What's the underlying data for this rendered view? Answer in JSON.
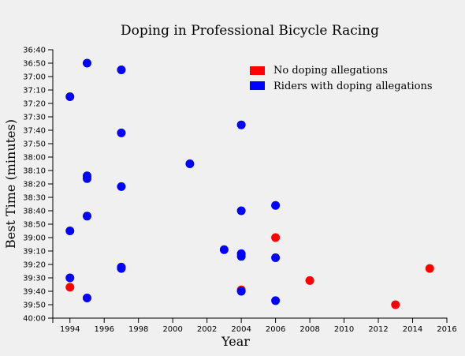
{
  "chart_data": {
    "type": "scatter",
    "title": "Doping in Professional Bicycle Racing",
    "xlabel": "Year",
    "ylabel": "Best Time (minutes)",
    "xlim": [
      1993,
      2016
    ],
    "xticks": [
      1994,
      1996,
      1998,
      2000,
      2002,
      2004,
      2006,
      2008,
      2010,
      2012,
      2014,
      2016
    ],
    "xtick_labels": [
      "1994",
      "1996",
      "1998",
      "2000",
      "2002",
      "2004",
      "2006",
      "2008",
      "2010",
      "2012",
      "2014",
      "2016"
    ],
    "ylim_seconds": [
      2200,
      2400
    ],
    "yticks_seconds": [
      2200,
      2210,
      2220,
      2230,
      2240,
      2250,
      2260,
      2270,
      2280,
      2290,
      2300,
      2310,
      2320,
      2330,
      2340,
      2350,
      2360,
      2370,
      2380,
      2390,
      2400
    ],
    "ytick_labels": [
      "36:40",
      "36:50",
      "37:00",
      "37:10",
      "37:20",
      "37:30",
      "37:40",
      "37:50",
      "38:00",
      "38:10",
      "38:20",
      "38:30",
      "38:40",
      "38:50",
      "39:00",
      "39:10",
      "39:20",
      "39:30",
      "39:40",
      "39:50",
      "40:00"
    ],
    "y_inverted": true,
    "legend": {
      "position": "top-right"
    },
    "series": [
      {
        "name": "No doping allegations",
        "color": "#ff0000",
        "points": [
          {
            "x": 1994,
            "y": "39:37"
          },
          {
            "x": 2004,
            "y": "39:39"
          },
          {
            "x": 2006,
            "y": "39:00"
          },
          {
            "x": 2008,
            "y": "39:32"
          },
          {
            "x": 2013,
            "y": "39:50"
          },
          {
            "x": 2015,
            "y": "39:23"
          }
        ]
      },
      {
        "name": "Riders with doping allegations",
        "color": "#0000ff",
        "points": [
          {
            "x": 1995,
            "y": "36:50"
          },
          {
            "x": 1997,
            "y": "36:55"
          },
          {
            "x": 1994,
            "y": "37:15"
          },
          {
            "x": 2004,
            "y": "37:36"
          },
          {
            "x": 1997,
            "y": "37:42"
          },
          {
            "x": 2001,
            "y": "38:05"
          },
          {
            "x": 1995,
            "y": "38:14"
          },
          {
            "x": 1995,
            "y": "38:16"
          },
          {
            "x": 1997,
            "y": "38:22"
          },
          {
            "x": 2006,
            "y": "38:36"
          },
          {
            "x": 2004,
            "y": "38:40"
          },
          {
            "x": 1995,
            "y": "38:44"
          },
          {
            "x": 1994,
            "y": "38:55"
          },
          {
            "x": 2003,
            "y": "39:09"
          },
          {
            "x": 2004,
            "y": "39:12"
          },
          {
            "x": 2004,
            "y": "39:14"
          },
          {
            "x": 2006,
            "y": "39:15"
          },
          {
            "x": 1997,
            "y": "39:22"
          },
          {
            "x": 1997,
            "y": "39:23"
          },
          {
            "x": 1994,
            "y": "39:30"
          },
          {
            "x": 2004,
            "y": "39:40"
          },
          {
            "x": 1995,
            "y": "39:45"
          },
          {
            "x": 2006,
            "y": "39:47"
          }
        ]
      }
    ]
  }
}
